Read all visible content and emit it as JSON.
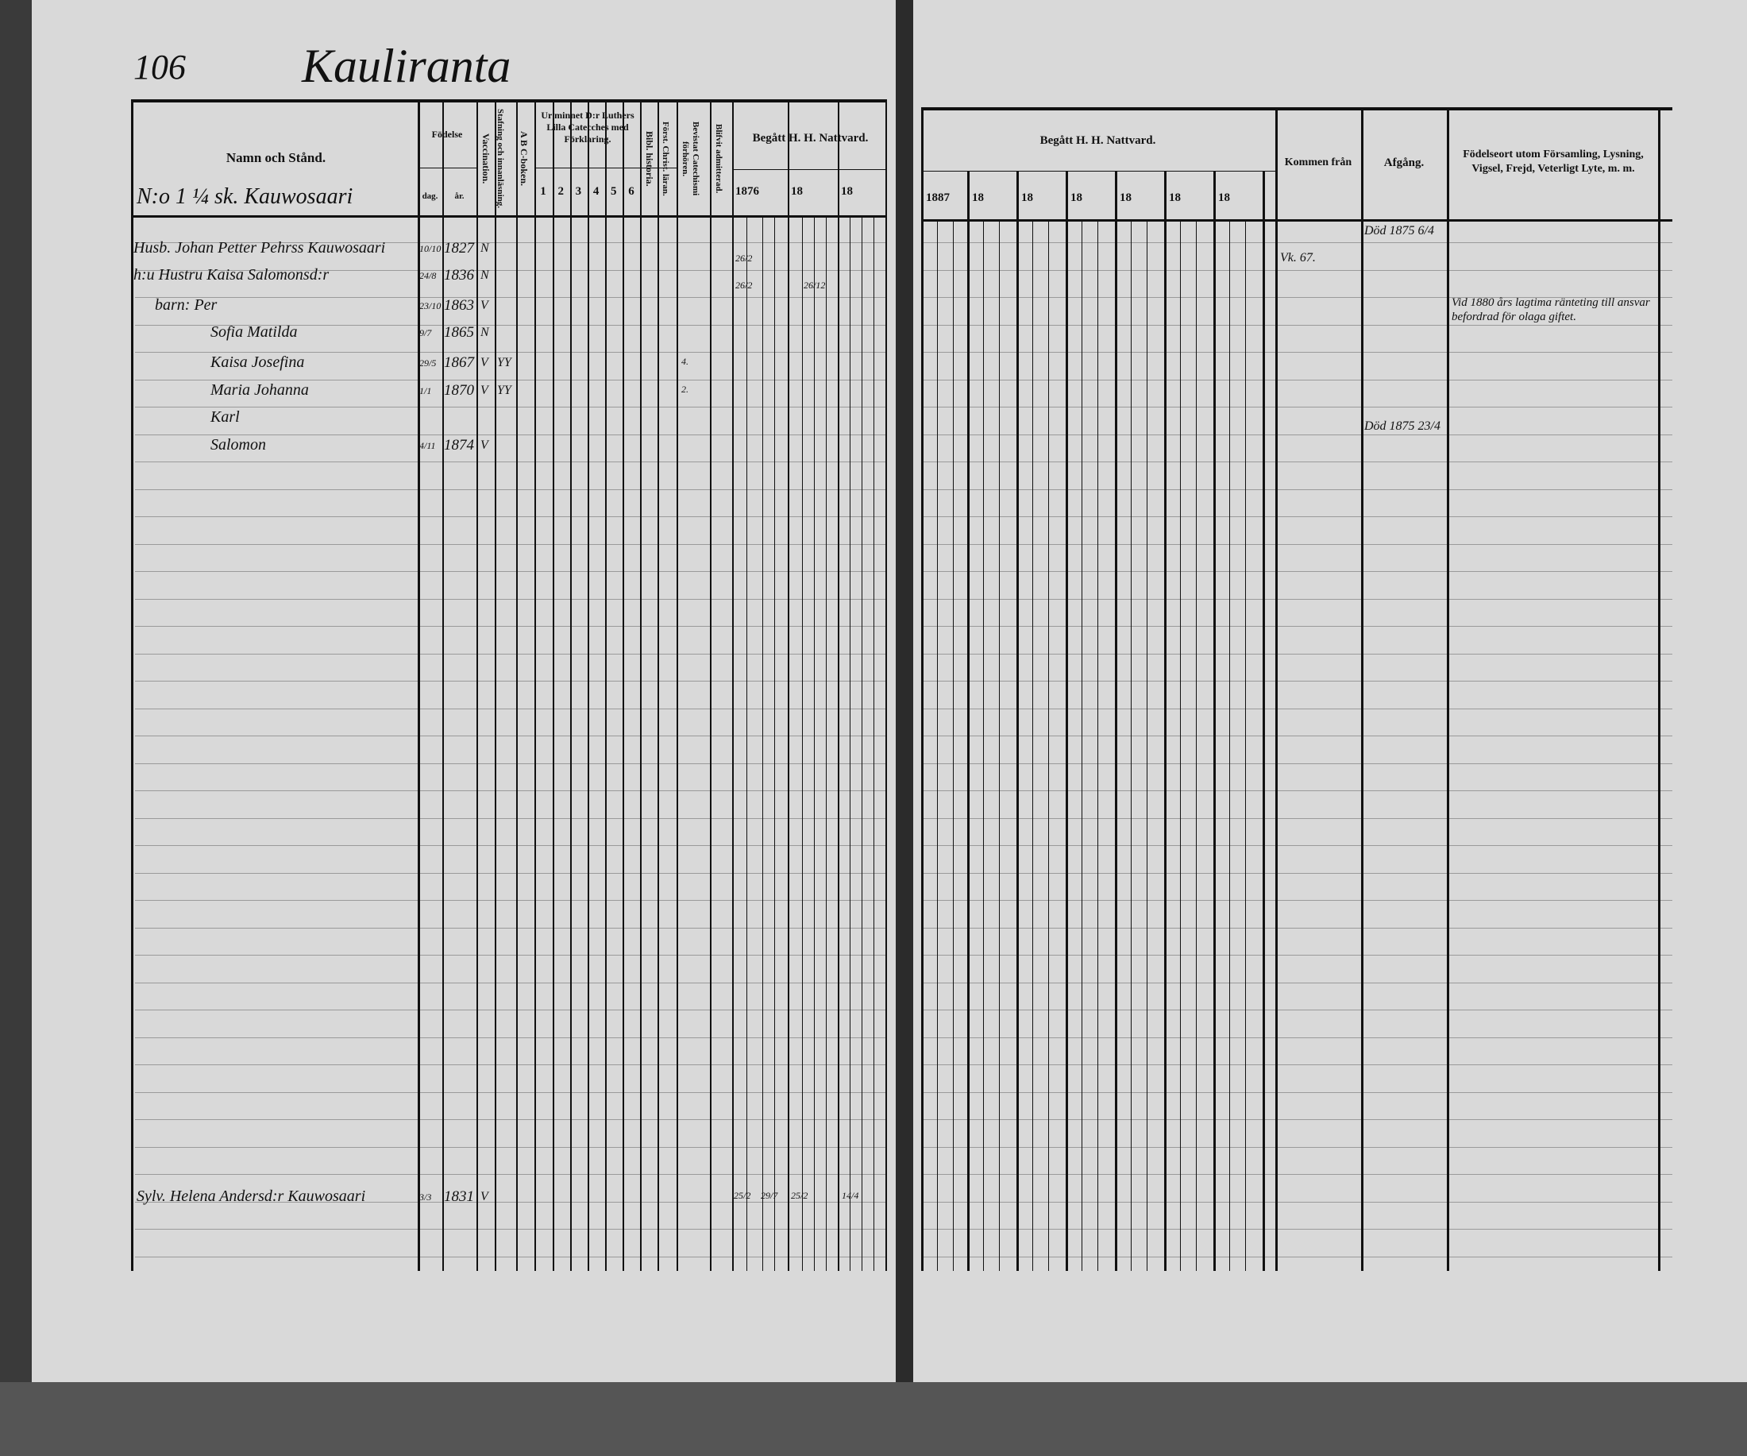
{
  "left_page": {
    "page_number": "106",
    "village": "Kauliranta",
    "household_heading": "N:o 1 ¼ sk. Kauwosaari",
    "headers": {
      "name": "Namn och Stånd.",
      "birth": "Födelse",
      "day": "dag.",
      "year": "år.",
      "vaccination": "Vaccination.",
      "spelling": "Stafning och innanläsning.",
      "abc": "A B C-boken.",
      "catechism": "Ur minnet D:r Luthers Lilla Catecches med Förklaring.",
      "cat_nums": [
        "1",
        "2",
        "3",
        "4",
        "5",
        "6"
      ],
      "bible_history": "Bibl. historia.",
      "christian": "Först. Christ. läran.",
      "attended": "Bevistat Catechismi förhören.",
      "admitted": "Blifvit admitterad.",
      "communion": "Begått H. H. Nattvard.",
      "communion_years": [
        "1876",
        "18",
        "18"
      ]
    },
    "entries": [
      {
        "name": "Husb. Johan Petter Pehrss Kauwosaari",
        "day": "10/10",
        "year": "1827",
        "vacc": "N",
        "extra": "",
        "marks": [
          "26/2"
        ]
      },
      {
        "name": "h:u Hustru Kaisa Salomonsd:r",
        "day": "24/8",
        "year": "1836",
        "vacc": "N",
        "extra": "",
        "marks": [
          "26/2",
          "26/12"
        ]
      },
      {
        "name": "barn: Per",
        "day": "23/10",
        "year": "1863",
        "vacc": "V",
        "extra": "",
        "marks": []
      },
      {
        "name": "Sofia Matilda",
        "day": "9/7",
        "year": "1865",
        "vacc": "N",
        "extra": "",
        "marks": []
      },
      {
        "name": "Kaisa Josefina",
        "day": "29/5",
        "year": "1867",
        "vacc": "V",
        "extra": "YY",
        "marks": [
          "4."
        ]
      },
      {
        "name": "Maria Johanna",
        "day": "1/1",
        "year": "1870",
        "vacc": "V",
        "extra": "YY",
        "marks": [
          "2."
        ]
      },
      {
        "name": "Karl",
        "day": "",
        "year": "",
        "vacc": "",
        "extra": "",
        "marks": []
      },
      {
        "name": "Salomon",
        "day": "4/11",
        "year": "1874",
        "vacc": "V",
        "extra": "",
        "marks": []
      },
      {
        "name": "Sylv. Helena Andersd:r Kauwosaari",
        "day": "3/3",
        "year": "1831",
        "vacc": "V",
        "extra": "",
        "marks": [
          "25/2",
          "29/7",
          "25/2",
          "14/4"
        ]
      }
    ]
  },
  "right_page": {
    "headers": {
      "communion": "Begått H. H. Nattvard.",
      "communion_years": [
        "1887",
        "18",
        "18",
        "18",
        "18",
        "18",
        "18"
      ],
      "from": "Kommen från",
      "departure": "Afgång.",
      "notes": "Födelseort utom Församling, Lysning, Vigsel, Frejd, Veterligt Lyte, m. m."
    },
    "entries": [
      {
        "from": "",
        "departure": "Död 1875 6/4",
        "notes": ""
      },
      {
        "from": "Vk. 67.",
        "departure": "",
        "notes": ""
      },
      {
        "from": "",
        "departure": "",
        "notes": "Vid 1880 års lagtima ränteting till ansvar befordrad för olaga giftet."
      },
      {
        "from": "",
        "departure": "Död 1875 23/4",
        "notes": ""
      }
    ]
  }
}
